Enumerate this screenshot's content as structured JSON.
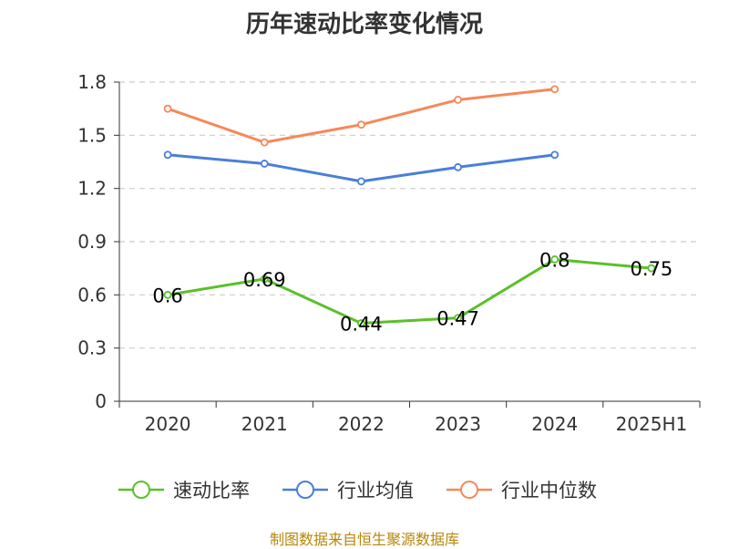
{
  "chart_data": {
    "type": "line",
    "title": "历年速动比率变化情况",
    "categories": [
      "2020",
      "2021",
      "2022",
      "2023",
      "2024",
      "2025H1"
    ],
    "y_ticks": [
      "0",
      "0.3",
      "0.6",
      "0.9",
      "1.2",
      "1.5",
      "1.8"
    ],
    "ylim": [
      0,
      1.8
    ],
    "grid": true,
    "legend_position": "bottom",
    "series": [
      {
        "name": "速动比率",
        "color": "#5ac02a",
        "values": [
          0.6,
          0.69,
          0.44,
          0.47,
          0.8,
          0.75
        ],
        "labels": [
          "0.6",
          "0.69",
          "0.44",
          "0.47",
          "0.8",
          "0.75"
        ]
      },
      {
        "name": "行业均值",
        "color": "#4a7fd8",
        "values": [
          1.39,
          1.34,
          1.24,
          1.32,
          1.39,
          null
        ]
      },
      {
        "name": "行业中位数",
        "color": "#f5895a",
        "values": [
          1.65,
          1.46,
          1.56,
          1.7,
          1.76,
          null
        ]
      }
    ],
    "source": "制图数据来自恒生聚源数据库"
  }
}
